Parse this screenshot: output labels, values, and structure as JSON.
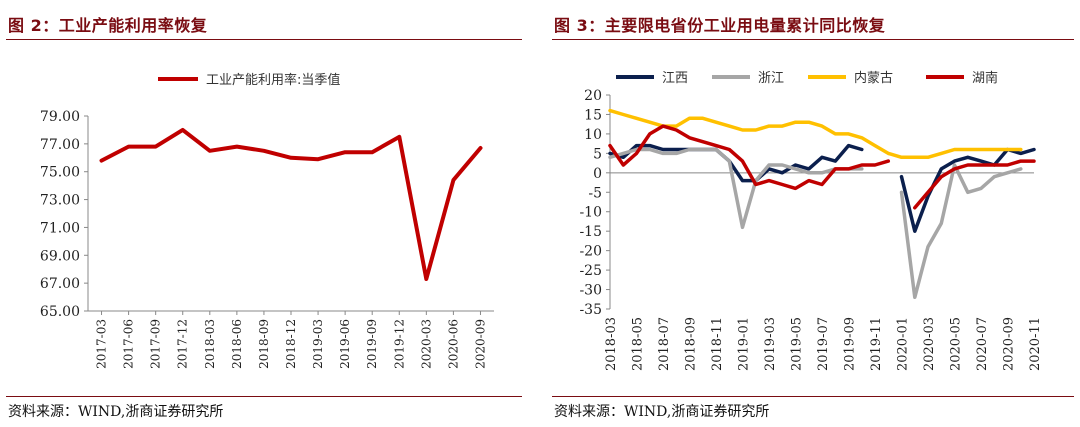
{
  "left": {
    "fig_label": "图 2：工业产能利用率恢复",
    "source": "资料来源：WIND,浙商证券研究所",
    "chart_data": {
      "type": "line",
      "title": "",
      "legend_position": "top",
      "ylim": [
        65,
        79
      ],
      "yticks": [
        65,
        67,
        69,
        71,
        73,
        75,
        77,
        79
      ],
      "ytick_labels": [
        "65.00",
        "67.00",
        "69.00",
        "71.00",
        "73.00",
        "75.00",
        "77.00",
        "79.00"
      ],
      "categories": [
        "2017-03",
        "2017-06",
        "2017-09",
        "2017-12",
        "2018-03",
        "2018-06",
        "2018-09",
        "2018-12",
        "2019-03",
        "2019-06",
        "2019-09",
        "2019-12",
        "2020-03",
        "2020-06",
        "2020-09"
      ],
      "series": [
        {
          "name": "工业产能利用率:当季值",
          "color": "#c00000",
          "values": [
            75.8,
            76.8,
            76.8,
            78.0,
            76.5,
            76.8,
            76.5,
            76.0,
            75.9,
            76.4,
            76.4,
            77.5,
            67.3,
            74.4,
            76.7
          ]
        }
      ]
    }
  },
  "right": {
    "fig_label": "图 3：主要限电省份工业用电量累计同比恢复",
    "source": "资料来源：WIND,浙商证券研究所",
    "chart_data": {
      "type": "line",
      "title": "",
      "legend_position": "top",
      "ylim": [
        -35,
        20
      ],
      "yticks": [
        -35,
        -30,
        -25,
        -20,
        -15,
        -10,
        -5,
        0,
        5,
        10,
        15,
        20
      ],
      "x": [
        "2018-03",
        "2018-04",
        "2018-05",
        "2018-06",
        "2018-07",
        "2018-08",
        "2018-09",
        "2018-10",
        "2018-11",
        "2018-12",
        "2019-01",
        "2019-02",
        "2019-03",
        "2019-04",
        "2019-05",
        "2019-06",
        "2019-07",
        "2019-08",
        "2019-09",
        "2019-10",
        "2019-11",
        "2019-12",
        "2020-01",
        "2020-02",
        "2020-03",
        "2020-04",
        "2020-05",
        "2020-06",
        "2020-07",
        "2020-08",
        "2020-09",
        "2020-10",
        "2020-11"
      ],
      "x_tick_labels": [
        "2018-03",
        "2018-05",
        "2018-07",
        "2018-09",
        "2018-11",
        "2019-01",
        "2019-03",
        "2019-05",
        "2019-07",
        "2019-09",
        "2019-11",
        "2020-01",
        "2020-03",
        "2020-05",
        "2020-07",
        "2020-09",
        "2020-11"
      ],
      "series": [
        {
          "name": "江西",
          "color": "#0b1f4d",
          "values": [
            5,
            4,
            7,
            7,
            6,
            6,
            6,
            6,
            6,
            3,
            -2,
            -2,
            1,
            0,
            2,
            1,
            4,
            3,
            7,
            6,
            null,
            null,
            -1,
            -15,
            -6,
            1,
            3,
            4,
            3,
            2,
            6,
            5,
            6
          ]
        },
        {
          "name": "浙江",
          "color": "#a6a6a6",
          "values": [
            4,
            5,
            6,
            6,
            5,
            5,
            6,
            6,
            6,
            3,
            -14,
            -2,
            2,
            2,
            1,
            0,
            0,
            1,
            1,
            1,
            null,
            null,
            -5,
            -32,
            -19,
            -13,
            2,
            -5,
            -4,
            -1,
            0,
            1,
            null
          ]
        },
        {
          "name": "内蒙古",
          "color": "#ffc000",
          "values": [
            16,
            15,
            14,
            13,
            12,
            12,
            14,
            14,
            13,
            12,
            11,
            11,
            12,
            12,
            13,
            13,
            12,
            10,
            10,
            9,
            7,
            5,
            4,
            4,
            4,
            5,
            6,
            6,
            6,
            6,
            6,
            6,
            null
          ]
        },
        {
          "name": "湖南",
          "color": "#c00000",
          "values": [
            7,
            2,
            5,
            10,
            12,
            11,
            9,
            8,
            7,
            6,
            3,
            -3,
            -2,
            -3,
            -4,
            -2,
            -3,
            1,
            1,
            2,
            2,
            3,
            null,
            -9,
            -5,
            -1,
            1,
            2,
            2,
            2,
            2,
            3,
            3
          ]
        }
      ]
    }
  }
}
